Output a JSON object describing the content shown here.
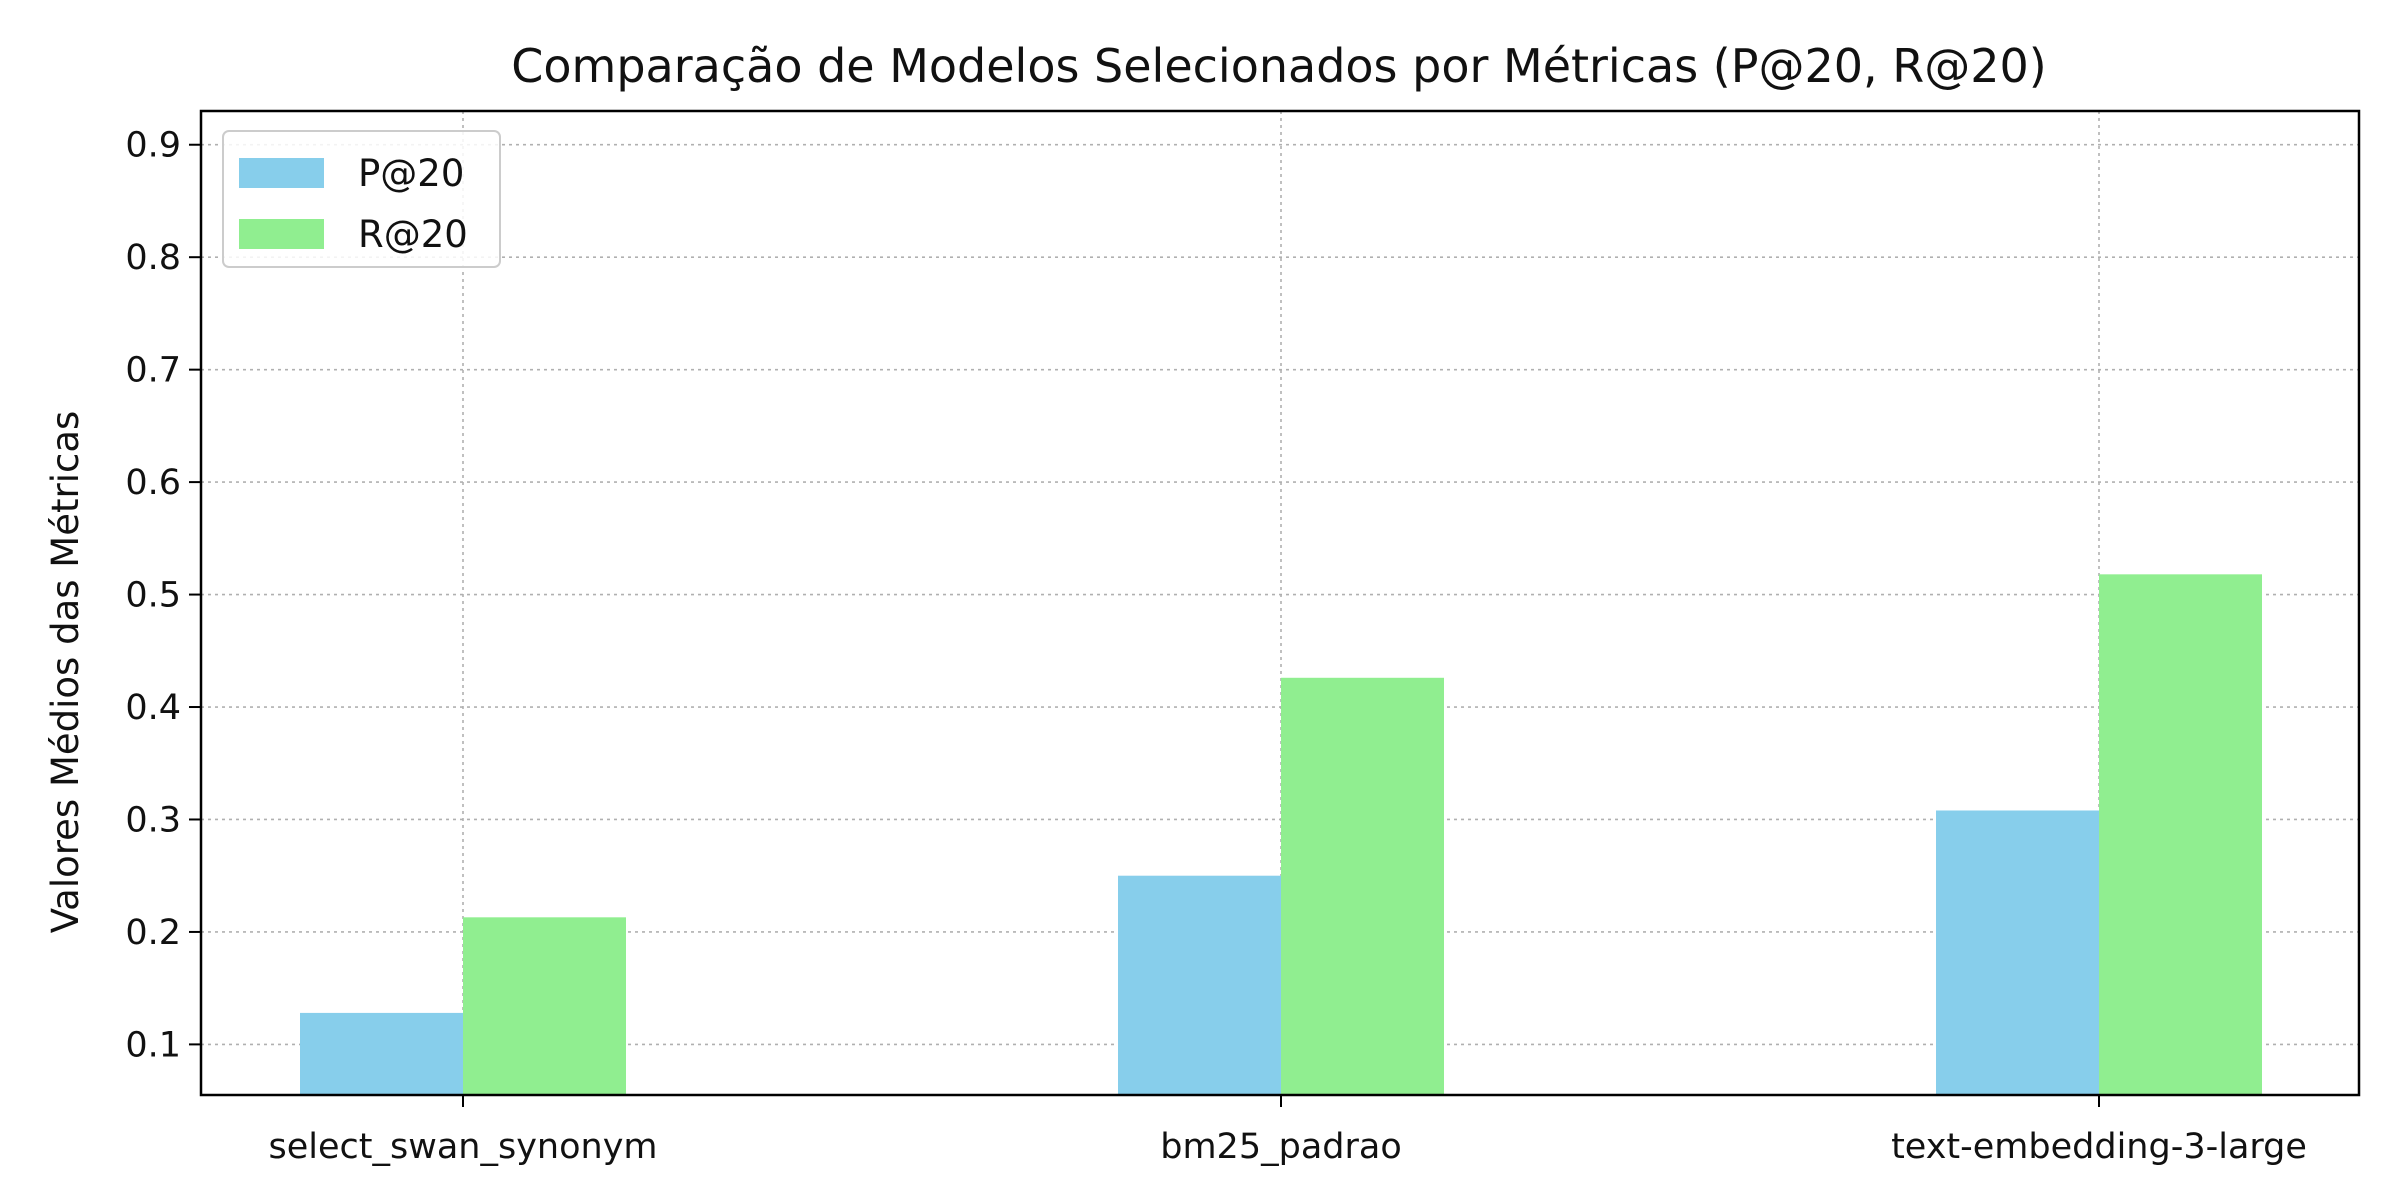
{
  "chart_data": {
    "type": "bar",
    "title": "Comparação de Modelos Selecionados por Métricas (P@20, R@20)",
    "xlabel": "",
    "ylabel": "Valores Médios das Métricas",
    "categories": [
      "select_swan_synonym",
      "bm25_padrao",
      "text-embedding-3-large"
    ],
    "series": [
      {
        "name": "P@20",
        "color": "#87CEEB",
        "values": [
          0.128,
          0.25,
          0.308
        ]
      },
      {
        "name": "R@20",
        "color": "#90EE90",
        "values": [
          0.213,
          0.426,
          0.518
        ]
      }
    ],
    "ylim": [
      0.055,
      0.93
    ],
    "yticks": [
      0.1,
      0.2,
      0.3,
      0.4,
      0.5,
      0.6,
      0.7,
      0.8,
      0.9
    ],
    "ytick_labels": [
      "0.1",
      "0.2",
      "0.3",
      "0.4",
      "0.5",
      "0.6",
      "0.7",
      "0.8",
      "0.9"
    ],
    "grid": true,
    "legend_position": "top-left"
  }
}
